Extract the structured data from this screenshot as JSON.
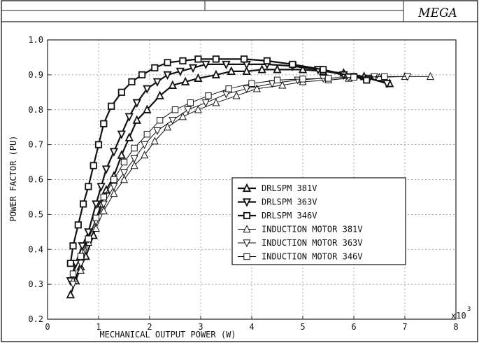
{
  "header": {
    "logo_text": "MEGA"
  },
  "chart_data": {
    "type": "line",
    "title": "",
    "xlabel": "MECHANICAL OUTPUT POWER (W)",
    "ylabel": "POWER FACTOR (PU)",
    "x_multiplier_label": "x10",
    "x_multiplier_exp": "3",
    "xlim": [
      0,
      8
    ],
    "ylim": [
      0.2,
      1.0
    ],
    "x_ticks": [
      0,
      1,
      2,
      3,
      4,
      5,
      6,
      7,
      8
    ],
    "y_ticks": [
      "0.2",
      "0.3",
      "0.4",
      "0.5",
      "0.6",
      "0.7",
      "0.8",
      "0.9",
      "1.0"
    ],
    "grid": true,
    "legend_position": "center-right",
    "series": [
      {
        "name": "DRLSPM 381V",
        "marker": "triangle-up",
        "weight": "bold",
        "points": [
          [
            0.45,
            0.27
          ],
          [
            0.55,
            0.31
          ],
          [
            0.65,
            0.35
          ],
          [
            0.75,
            0.38
          ],
          [
            0.9,
            0.44
          ],
          [
            1.05,
            0.53
          ],
          [
            1.15,
            0.57
          ],
          [
            1.3,
            0.61
          ],
          [
            1.45,
            0.67
          ],
          [
            1.6,
            0.72
          ],
          [
            1.75,
            0.77
          ],
          [
            1.95,
            0.8
          ],
          [
            2.2,
            0.84
          ],
          [
            2.45,
            0.87
          ],
          [
            2.7,
            0.88
          ],
          [
            2.95,
            0.89
          ],
          [
            3.3,
            0.9
          ],
          [
            3.6,
            0.91
          ],
          [
            3.9,
            0.91
          ],
          [
            4.2,
            0.915
          ],
          [
            4.5,
            0.915
          ],
          [
            5.0,
            0.915
          ],
          [
            5.4,
            0.91
          ],
          [
            5.8,
            0.905
          ],
          [
            6.2,
            0.895
          ],
          [
            6.7,
            0.875
          ]
        ]
      },
      {
        "name": "DRLSPM 363V",
        "marker": "triangle-down",
        "weight": "bold",
        "points": [
          [
            0.45,
            0.31
          ],
          [
            0.55,
            0.36
          ],
          [
            0.68,
            0.41
          ],
          [
            0.8,
            0.45
          ],
          [
            0.95,
            0.53
          ],
          [
            1.05,
            0.58
          ],
          [
            1.15,
            0.63
          ],
          [
            1.3,
            0.68
          ],
          [
            1.45,
            0.73
          ],
          [
            1.6,
            0.78
          ],
          [
            1.75,
            0.82
          ],
          [
            1.95,
            0.86
          ],
          [
            2.15,
            0.88
          ],
          [
            2.35,
            0.9
          ],
          [
            2.6,
            0.91
          ],
          [
            2.85,
            0.92
          ],
          [
            3.1,
            0.93
          ],
          [
            3.5,
            0.93
          ],
          [
            3.9,
            0.93
          ],
          [
            4.3,
            0.93
          ],
          [
            4.8,
            0.925
          ],
          [
            5.3,
            0.915
          ],
          [
            5.8,
            0.9
          ],
          [
            6.3,
            0.89
          ],
          [
            6.65,
            0.875
          ]
        ]
      },
      {
        "name": "DRLSPM 346V",
        "marker": "square",
        "weight": "bold",
        "points": [
          [
            0.45,
            0.36
          ],
          [
            0.5,
            0.41
          ],
          [
            0.6,
            0.47
          ],
          [
            0.7,
            0.53
          ],
          [
            0.8,
            0.58
          ],
          [
            0.9,
            0.64
          ],
          [
            1.0,
            0.7
          ],
          [
            1.1,
            0.76
          ],
          [
            1.25,
            0.81
          ],
          [
            1.45,
            0.85
          ],
          [
            1.65,
            0.88
          ],
          [
            1.85,
            0.9
          ],
          [
            2.1,
            0.92
          ],
          [
            2.35,
            0.935
          ],
          [
            2.65,
            0.94
          ],
          [
            2.95,
            0.945
          ],
          [
            3.3,
            0.945
          ],
          [
            3.85,
            0.945
          ],
          [
            4.3,
            0.94
          ],
          [
            4.8,
            0.93
          ],
          [
            5.4,
            0.915
          ],
          [
            6.0,
            0.895
          ],
          [
            6.25,
            0.885
          ]
        ]
      },
      {
        "name": "INDUCTION MOTOR 381V",
        "marker": "triangle-up",
        "weight": "thin",
        "points": [
          [
            0.5,
            0.31
          ],
          [
            0.65,
            0.34
          ],
          [
            0.8,
            0.42
          ],
          [
            0.95,
            0.46
          ],
          [
            1.1,
            0.51
          ],
          [
            1.3,
            0.56
          ],
          [
            1.5,
            0.6
          ],
          [
            1.7,
            0.64
          ],
          [
            1.9,
            0.67
          ],
          [
            2.1,
            0.71
          ],
          [
            2.35,
            0.75
          ],
          [
            2.65,
            0.78
          ],
          [
            2.95,
            0.8
          ],
          [
            3.3,
            0.82
          ],
          [
            3.7,
            0.84
          ],
          [
            4.1,
            0.86
          ],
          [
            4.6,
            0.87
          ],
          [
            5.0,
            0.88
          ],
          [
            5.5,
            0.885
          ],
          [
            5.9,
            0.89
          ],
          [
            6.5,
            0.893
          ],
          [
            7.0,
            0.895
          ],
          [
            7.5,
            0.895
          ]
        ]
      },
      {
        "name": "INDUCTION MOTOR 363V",
        "marker": "triangle-down",
        "weight": "thin",
        "points": [
          [
            0.5,
            0.3
          ],
          [
            0.65,
            0.36
          ],
          [
            0.8,
            0.43
          ],
          [
            0.95,
            0.48
          ],
          [
            1.1,
            0.53
          ],
          [
            1.3,
            0.58
          ],
          [
            1.5,
            0.62
          ],
          [
            1.7,
            0.66
          ],
          [
            1.9,
            0.7
          ],
          [
            2.15,
            0.74
          ],
          [
            2.45,
            0.77
          ],
          [
            2.75,
            0.8
          ],
          [
            3.1,
            0.82
          ],
          [
            3.5,
            0.845
          ],
          [
            3.9,
            0.86
          ],
          [
            4.4,
            0.875
          ],
          [
            4.9,
            0.885
          ],
          [
            5.4,
            0.89
          ],
          [
            5.9,
            0.893
          ],
          [
            6.4,
            0.895
          ],
          [
            7.05,
            0.895
          ]
        ]
      },
      {
        "name": "INDUCTION MOTOR 346V",
        "marker": "square",
        "weight": "thin",
        "points": [
          [
            0.5,
            0.33
          ],
          [
            0.65,
            0.38
          ],
          [
            0.8,
            0.43
          ],
          [
            0.95,
            0.49
          ],
          [
            1.1,
            0.55
          ],
          [
            1.3,
            0.6
          ],
          [
            1.5,
            0.65
          ],
          [
            1.7,
            0.69
          ],
          [
            1.95,
            0.73
          ],
          [
            2.2,
            0.77
          ],
          [
            2.5,
            0.8
          ],
          [
            2.8,
            0.82
          ],
          [
            3.15,
            0.84
          ],
          [
            3.55,
            0.86
          ],
          [
            4.0,
            0.875
          ],
          [
            4.5,
            0.885
          ],
          [
            5.0,
            0.888
          ],
          [
            5.5,
            0.89
          ],
          [
            6.0,
            0.893
          ],
          [
            6.6,
            0.895
          ]
        ]
      }
    ]
  }
}
